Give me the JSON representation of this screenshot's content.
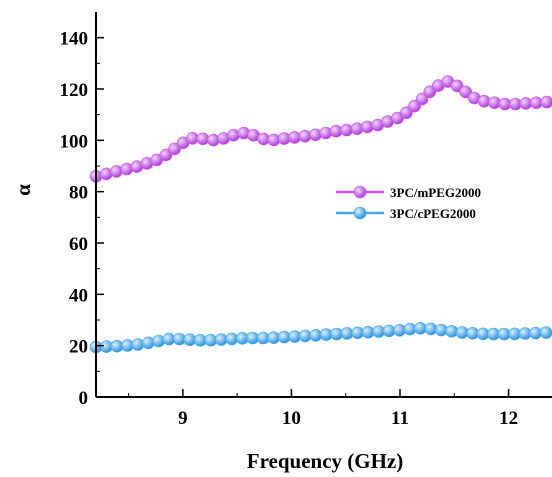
{
  "chart_data": {
    "type": "line",
    "xlabel": "Frequency (GHz)",
    "ylabel": "α",
    "xlim": [
      8.2,
      12.4
    ],
    "ylim": [
      0,
      150
    ],
    "x_ticks": [
      9,
      10,
      11,
      12
    ],
    "y_ticks": [
      0,
      20,
      40,
      60,
      80,
      100,
      120,
      140
    ],
    "grid": false,
    "legend_position": "center-right",
    "series": [
      {
        "name": "3PC/mPEG2000",
        "color": "#cc55ee",
        "x": [
          8.2,
          8.4,
          8.6,
          8.8,
          8.9,
          9.0,
          9.1,
          9.2,
          9.3,
          9.4,
          9.5,
          9.6,
          9.7,
          9.8,
          9.9,
          10.0,
          10.2,
          10.4,
          10.6,
          10.8,
          11.0,
          11.1,
          11.2,
          11.3,
          11.4,
          11.45,
          11.5,
          11.6,
          11.7,
          11.8,
          12.0,
          12.2,
          12.4
        ],
        "y": [
          86,
          88,
          90,
          93,
          96,
          99,
          101,
          100.5,
          100,
          101,
          102.5,
          103,
          101,
          100,
          100.5,
          101,
          102,
          103.5,
          104.5,
          106,
          109,
          112,
          116,
          120,
          122.5,
          123,
          122,
          119,
          116,
          115,
          114,
          114.5,
          115
        ]
      },
      {
        "name": "3PC/cPEG2000",
        "color": "#44aaee",
        "x": [
          8.2,
          8.4,
          8.6,
          8.8,
          8.9,
          9.0,
          9.2,
          9.4,
          9.6,
          9.8,
          10.0,
          10.2,
          10.4,
          10.6,
          10.8,
          11.0,
          11.1,
          11.2,
          11.3,
          11.4,
          11.6,
          11.8,
          12.0,
          12.2,
          12.4
        ],
        "y": [
          19.5,
          19.8,
          20.5,
          22,
          22.8,
          22.5,
          22,
          22.5,
          23,
          23,
          23.5,
          24,
          24.5,
          25,
          25.5,
          26,
          26.5,
          26.8,
          26.5,
          26,
          25,
          24.5,
          24.5,
          24.8,
          25.2
        ]
      }
    ]
  }
}
